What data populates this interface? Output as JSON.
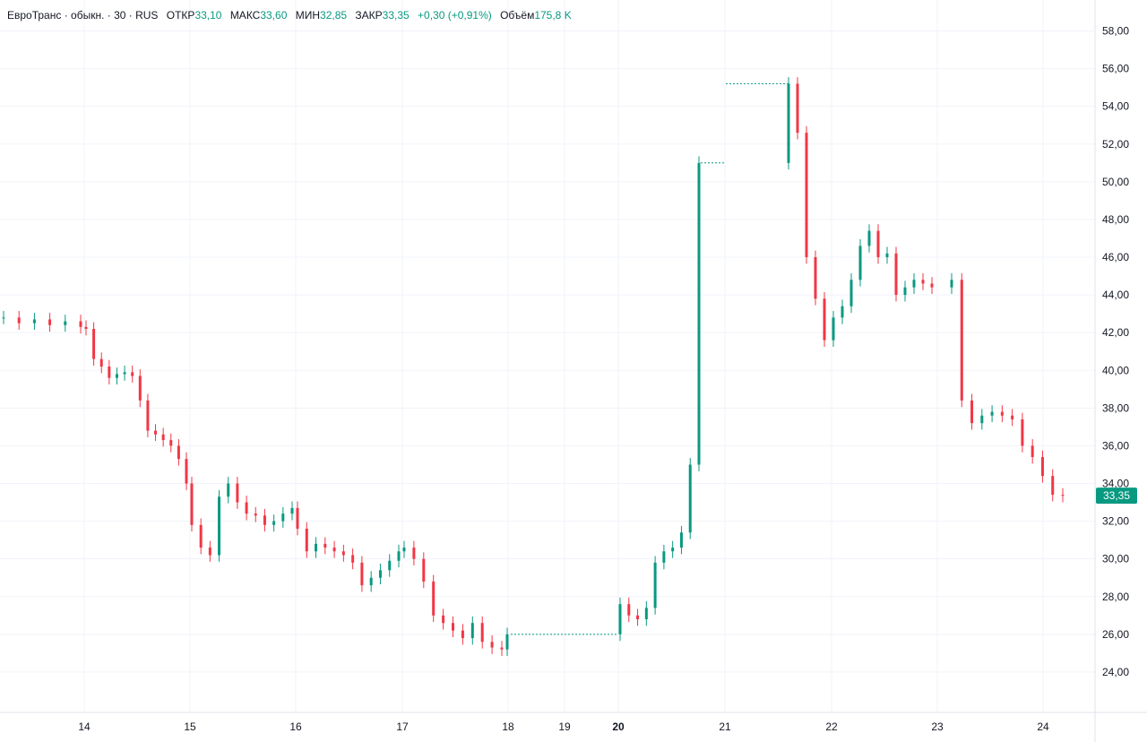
{
  "legend": {
    "symbol": "ЕвроТранс · обыкн. · 30 · RUS",
    "open_label": "ОТКР",
    "open": "33,10",
    "high_label": "МАКС",
    "high": "33,60",
    "low_label": "МИН",
    "low": "32,85",
    "close_label": "ЗАКР",
    "close": "33,35",
    "change": "+0,30 (+0,91%)",
    "volume_label": "Объём",
    "volume": "175,8 K"
  },
  "colors": {
    "up": "#089981",
    "down": "#f23645",
    "grid": "#f0f3fa",
    "axis_line": "#e0e3eb",
    "badge": "#089981"
  },
  "chart_data": {
    "type": "candlestick",
    "y_ticks": [
      "24,00",
      "26,00",
      "28,00",
      "30,00",
      "32,00",
      "34,00",
      "36,00",
      "38,00",
      "40,00",
      "42,00",
      "44,00",
      "46,00",
      "48,00",
      "50,00",
      "52,00",
      "54,00",
      "56,00",
      "58,00"
    ],
    "x_ticks": [
      "14",
      "15",
      "16",
      "17",
      "18",
      "19",
      "20",
      "21",
      "22",
      "23",
      "24"
    ],
    "bold_x_ticks": [
      "20"
    ],
    "ylim": [
      22.0,
      58.5
    ],
    "last_price": "33,35",
    "last_price_value": 33.35,
    "series": [
      {
        "day": "13",
        "points": [
          42.8,
          42.5,
          42.7,
          42.4,
          42.6,
          42.3
        ]
      },
      {
        "day": "14",
        "points": [
          42.2,
          40.6,
          40.2,
          39.6,
          39.8,
          39.9,
          39.7,
          38.4,
          36.8,
          36.6,
          36.3,
          36.0,
          35.3,
          34.0
        ]
      },
      {
        "day": "15",
        "points": [
          31.8,
          30.6,
          30.2,
          33.3,
          34.0,
          33.0,
          32.4,
          32.3,
          31.8,
          32.0,
          32.4,
          32.7
        ]
      },
      {
        "day": "16",
        "points": [
          31.6,
          30.4,
          30.8,
          30.6,
          30.4,
          30.2,
          29.8,
          28.6,
          29.0,
          29.4,
          29.9,
          30.4
        ]
      },
      {
        "day": "17",
        "points": [
          30.6,
          30.0,
          28.8,
          27.0,
          26.6,
          26.2,
          25.8,
          26.6,
          25.6,
          25.3,
          25.2
        ]
      },
      {
        "day": "18",
        "points": [
          26.0
        ]
      },
      {
        "day": "20",
        "points": [
          27.6,
          27.0,
          26.8,
          27.4,
          29.8,
          30.4,
          30.6,
          31.4,
          35.0,
          51.0
        ]
      },
      {
        "day": "21",
        "points": [
          55.2,
          52.6,
          46.0,
          43.8,
          41.6,
          42.8,
          43.4,
          44.8,
          46.6,
          47.4,
          46.0,
          46.2,
          44.0,
          44.4,
          44.8,
          44.6,
          44.4
        ]
      },
      {
        "day": "23",
        "points": [
          44.8,
          38.4,
          37.2,
          37.6,
          37.8,
          37.6,
          37.4,
          36.0,
          35.4,
          34.4,
          33.4,
          33.35
        ]
      }
    ]
  }
}
